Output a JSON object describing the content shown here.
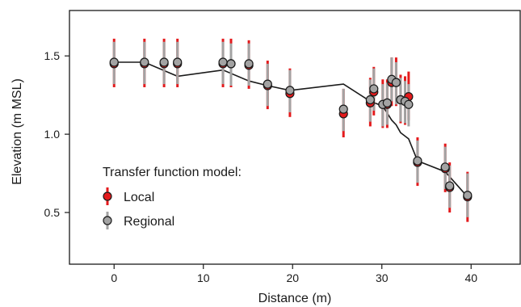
{
  "chart_data": {
    "type": "scatter",
    "xlabel": "Distance (m)",
    "ylabel": "Elevation (m MSL)",
    "xlim": [
      -5,
      45.5
    ],
    "ylim": [
      0.17,
      1.79
    ],
    "xticks": [
      0,
      10,
      20,
      30,
      40
    ],
    "yticks": [
      0.5,
      1.0,
      1.5
    ],
    "xtick_labels": [
      "0",
      "10",
      "20",
      "30",
      "40"
    ],
    "ytick_labels": [
      "0.5",
      "1.0",
      "1.5"
    ],
    "grid": false,
    "legend_placement": "lower-left",
    "legend": {
      "title": "Transfer function model:",
      "entries": [
        {
          "label": "Local",
          "color": "#e41a1c"
        },
        {
          "label": "Regional",
          "color": "#a3a3a3"
        }
      ]
    },
    "colors": {
      "local": "#e41a1c",
      "regional": "#a3a3a3",
      "line": "#1a1a1a"
    },
    "series": [
      {
        "name": "Local",
        "points": [
          {
            "x": 0,
            "y": 1.45,
            "lo": 1.3,
            "hi": 1.61
          },
          {
            "x": 3.4,
            "y": 1.45,
            "lo": 1.3,
            "hi": 1.61
          },
          {
            "x": 5.6,
            "y": 1.45,
            "lo": 1.3,
            "hi": 1.61
          },
          {
            "x": 7.1,
            "y": 1.45,
            "lo": 1.3,
            "hi": 1.61
          },
          {
            "x": 12.2,
            "y": 1.45,
            "lo": 1.3,
            "hi": 1.61
          },
          {
            "x": 13.1,
            "y": 1.45,
            "lo": 1.3,
            "hi": 1.61
          },
          {
            "x": 15.1,
            "y": 1.44,
            "lo": 1.29,
            "hi": 1.6
          },
          {
            "x": 17.2,
            "y": 1.31,
            "lo": 1.16,
            "hi": 1.47
          },
          {
            "x": 19.7,
            "y": 1.26,
            "lo": 1.11,
            "hi": 1.42
          },
          {
            "x": 25.7,
            "y": 1.13,
            "lo": 0.98,
            "hi": 1.29
          },
          {
            "x": 28.7,
            "y": 1.2,
            "lo": 1.05,
            "hi": 1.36
          },
          {
            "x": 29.1,
            "y": 1.27,
            "lo": 1.12,
            "hi": 1.43
          },
          {
            "x": 30.1,
            "y": 1.19,
            "lo": 1.04,
            "hi": 1.35
          },
          {
            "x": 30.6,
            "y": 1.19,
            "lo": 1.04,
            "hi": 1.35
          },
          {
            "x": 31.1,
            "y": 1.33,
            "lo": 1.18,
            "hi": 1.49
          },
          {
            "x": 31.6,
            "y": 1.33,
            "lo": 1.18,
            "hi": 1.49
          },
          {
            "x": 32.1,
            "y": 1.22,
            "lo": 1.07,
            "hi": 1.38
          },
          {
            "x": 32.6,
            "y": 1.21,
            "lo": 1.06,
            "hi": 1.37
          },
          {
            "x": 33.0,
            "y": 1.24,
            "lo": 1.09,
            "hi": 1.4
          },
          {
            "x": 34.0,
            "y": 0.82,
            "lo": 0.67,
            "hi": 0.98
          },
          {
            "x": 37.1,
            "y": 0.78,
            "lo": 0.63,
            "hi": 0.94
          },
          {
            "x": 37.6,
            "y": 0.66,
            "lo": 0.5,
            "hi": 0.82
          },
          {
            "x": 39.6,
            "y": 0.6,
            "lo": 0.44,
            "hi": 0.76
          }
        ]
      },
      {
        "name": "Regional",
        "points": [
          {
            "x": 0,
            "y": 1.46,
            "lo": 1.32,
            "hi": 1.59
          },
          {
            "x": 3.4,
            "y": 1.46,
            "lo": 1.32,
            "hi": 1.59
          },
          {
            "x": 5.6,
            "y": 1.46,
            "lo": 1.32,
            "hi": 1.59
          },
          {
            "x": 7.1,
            "y": 1.46,
            "lo": 1.32,
            "hi": 1.59
          },
          {
            "x": 12.2,
            "y": 1.46,
            "lo": 1.32,
            "hi": 1.59
          },
          {
            "x": 13.1,
            "y": 1.45,
            "lo": 1.31,
            "hi": 1.58
          },
          {
            "x": 15.1,
            "y": 1.45,
            "lo": 1.31,
            "hi": 1.58
          },
          {
            "x": 17.2,
            "y": 1.32,
            "lo": 1.18,
            "hi": 1.45
          },
          {
            "x": 19.7,
            "y": 1.28,
            "lo": 1.14,
            "hi": 1.41
          },
          {
            "x": 25.7,
            "y": 1.16,
            "lo": 1.02,
            "hi": 1.29
          },
          {
            "x": 28.7,
            "y": 1.22,
            "lo": 1.08,
            "hi": 1.35
          },
          {
            "x": 29.1,
            "y": 1.29,
            "lo": 1.15,
            "hi": 1.42
          },
          {
            "x": 30.1,
            "y": 1.19,
            "lo": 1.05,
            "hi": 1.32
          },
          {
            "x": 30.6,
            "y": 1.2,
            "lo": 1.06,
            "hi": 1.33
          },
          {
            "x": 31.1,
            "y": 1.35,
            "lo": 1.21,
            "hi": 1.49
          },
          {
            "x": 31.6,
            "y": 1.33,
            "lo": 1.19,
            "hi": 1.46
          },
          {
            "x": 32.1,
            "y": 1.22,
            "lo": 1.08,
            "hi": 1.36
          },
          {
            "x": 32.6,
            "y": 1.21,
            "lo": 1.07,
            "hi": 1.34
          },
          {
            "x": 33.0,
            "y": 1.19,
            "lo": 1.05,
            "hi": 1.32
          },
          {
            "x": 34.0,
            "y": 0.83,
            "lo": 0.69,
            "hi": 0.96
          },
          {
            "x": 37.1,
            "y": 0.79,
            "lo": 0.65,
            "hi": 0.92
          },
          {
            "x": 37.6,
            "y": 0.67,
            "lo": 0.53,
            "hi": 0.8
          },
          {
            "x": 39.6,
            "y": 0.61,
            "lo": 0.47,
            "hi": 0.75
          }
        ]
      }
    ],
    "line": {
      "x": [
        0,
        3.4,
        7.1,
        12.2,
        15.1,
        17.2,
        19.7,
        25.7,
        28.7,
        30.1,
        31.1,
        31.6,
        32.1,
        33.0,
        34.0,
        37.1,
        39.6
      ],
      "y": [
        1.46,
        1.46,
        1.37,
        1.41,
        1.34,
        1.31,
        1.28,
        1.32,
        1.21,
        1.18,
        1.09,
        1.06,
        1.01,
        0.97,
        0.83,
        0.76,
        0.6
      ]
    }
  }
}
